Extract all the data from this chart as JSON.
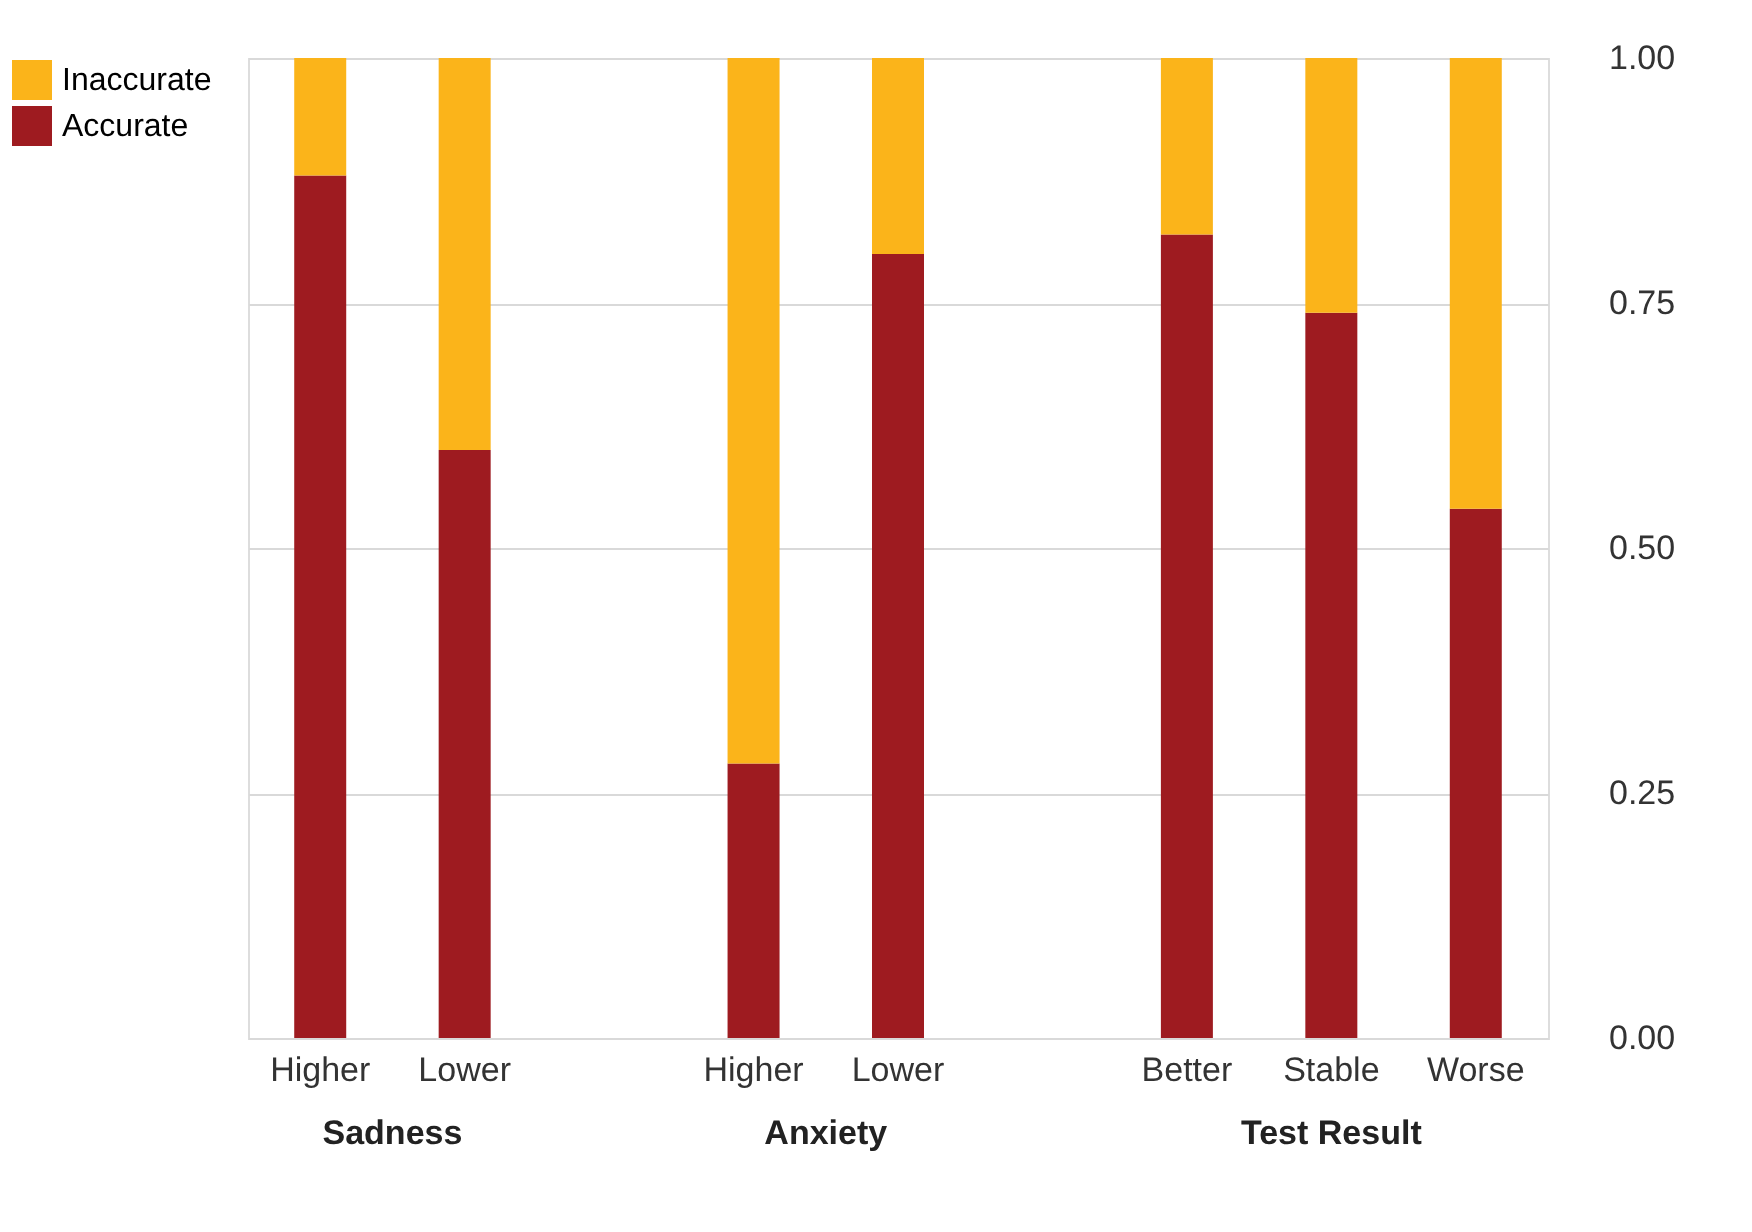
{
  "chart_data": {
    "type": "bar",
    "stacked": true,
    "categories": [
      "Higher",
      "Lower",
      null,
      "Higher",
      "Lower",
      null,
      "Better",
      "Stable",
      "Worse"
    ],
    "series": [
      {
        "name": "Accurate",
        "color": "#9e1b20",
        "values": [
          0.88,
          0.6,
          null,
          0.28,
          0.8,
          null,
          0.82,
          0.74,
          0.54
        ]
      },
      {
        "name": "Inaccurate",
        "color": "#fbb41a",
        "values": [
          0.12,
          0.4,
          null,
          0.72,
          0.2,
          null,
          0.18,
          0.26,
          0.46
        ]
      }
    ],
    "annotations": [
      "Sadness",
      "Anxiety",
      "Test Result"
    ],
    "ylim": [
      0,
      1
    ],
    "yticks": [
      {
        "value": 0,
        "label": "0.00"
      },
      {
        "value": 0.25,
        "label": "0.25"
      },
      {
        "value": 0.5,
        "label": "0.50"
      },
      {
        "value": 0.75,
        "label": "0.75"
      },
      {
        "value": 1,
        "label": "1.00"
      }
    ],
    "grid": "y",
    "legend": "left"
  }
}
